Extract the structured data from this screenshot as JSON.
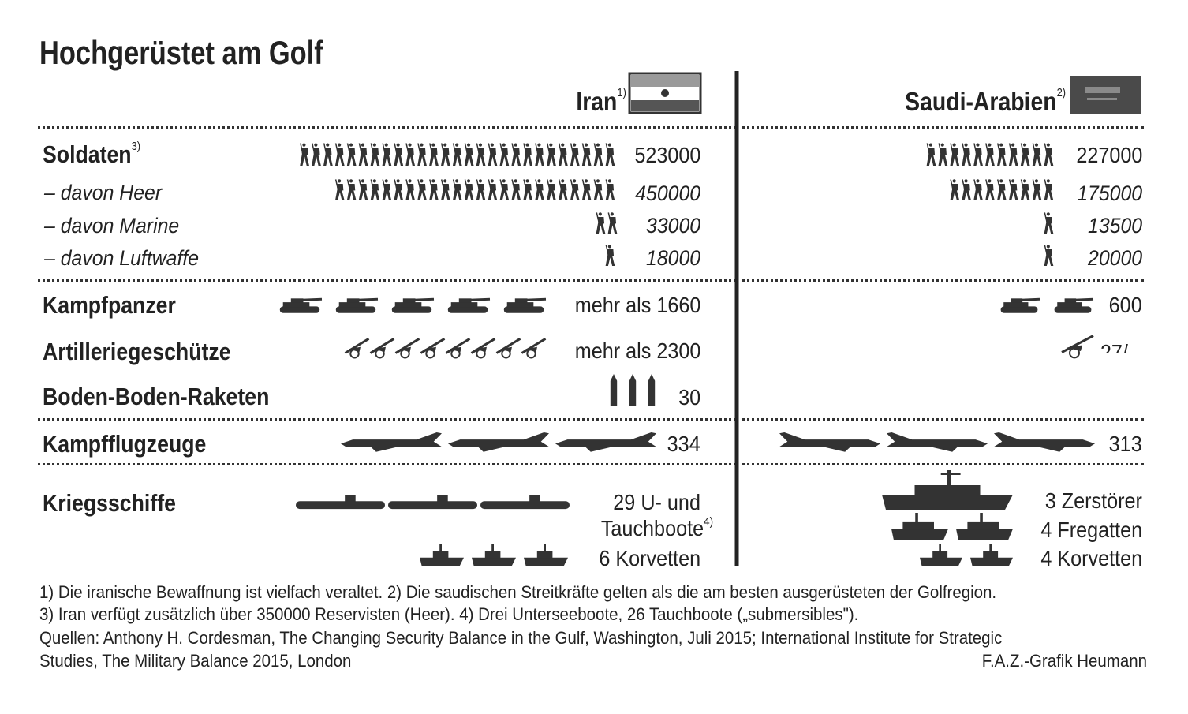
{
  "chart_data": {
    "type": "pictogram",
    "title": "Hochgerüstet am Golf",
    "countries": [
      {
        "name": "Iran",
        "note": "1)"
      },
      {
        "name": "Saudi-Arabien",
        "note": "2)"
      }
    ],
    "categories": [
      {
        "id": "soldaten",
        "label": "Soldaten",
        "note": "3)",
        "icon": "soldier-icon",
        "iran": {
          "value": 523000,
          "text": "523000",
          "icons": 27
        },
        "saudi": {
          "value": 227000,
          "text": "227000",
          "icons": 11
        }
      },
      {
        "id": "heer",
        "label": "– davon Heer",
        "icon": "soldier-icon",
        "iran": {
          "value": 450000,
          "text": "450000",
          "icons": 24
        },
        "saudi": {
          "value": 175000,
          "text": "175000",
          "icons": 9
        }
      },
      {
        "id": "marine",
        "label": "– davon Marine",
        "icon": "soldier-icon",
        "iran": {
          "value": 33000,
          "text": "33000",
          "icons": 2
        },
        "saudi": {
          "value": 13500,
          "text": "13500",
          "icons": 1
        }
      },
      {
        "id": "luftwaffe",
        "label": "– davon Luftwaffe",
        "icon": "soldier-icon",
        "iran": {
          "value": 18000,
          "text": "18000",
          "icons": 1
        },
        "saudi": {
          "value": 20000,
          "text": "20000",
          "icons": 1
        }
      },
      {
        "id": "kampfpanzer",
        "label": "Kampfpanzer",
        "icon": "tank-icon",
        "iran": {
          "value": 1660,
          "text": "mehr als 1660",
          "icons": 5
        },
        "saudi": {
          "value": 600,
          "text": "600",
          "icons": 2
        }
      },
      {
        "id": "artillerie",
        "label": "Artilleriegeschütze",
        "icon": "artillery-icon",
        "iran": {
          "value": 2300,
          "text": "mehr als 2300",
          "icons": 8
        },
        "saudi": {
          "value": null,
          "text": "27/",
          "icons": 1
        }
      },
      {
        "id": "raketen",
        "label": "Boden-Boden-Raketen",
        "icon": "missile-icon",
        "iran": {
          "value": 30,
          "text": "30",
          "icons": 3
        },
        "saudi": {
          "value": null,
          "text": "",
          "icons": 0
        }
      },
      {
        "id": "flugzeuge",
        "label": "Kampfflugzeuge",
        "icon": "fighter-jet-icon",
        "iran": {
          "value": 334,
          "text": "334",
          "icons": 3
        },
        "saudi": {
          "value": 313,
          "text": "313",
          "icons": 3
        }
      },
      {
        "id": "kriegsschiffe",
        "label": "Kriegsschiffe",
        "icon": "warship-icon"
      }
    ],
    "ships": {
      "iran": [
        {
          "value": 29,
          "text_line1": "29 U- und",
          "text_line2": "Tauchboote",
          "note": "4)",
          "icon": "submarine-icon",
          "icons": 3
        },
        {
          "value": 6,
          "text": "6 Korvetten",
          "icon": "corvette-icon",
          "icons": 3
        }
      ],
      "saudi": [
        {
          "value": 3,
          "text": "3 Zerstörer",
          "icon": "destroyer-icon",
          "icons": 1
        },
        {
          "value": 4,
          "text": "4 Fregatten",
          "icon": "frigate-icon",
          "icons": 2
        },
        {
          "value": 4,
          "text": "4 Korvetten",
          "icon": "corvette-icon",
          "icons": 2
        }
      ]
    }
  },
  "footnotes": {
    "line1": "1) Die iranische Bewaffnung ist vielfach veraltet.  2) Die saudischen Streitkräfte gelten als die am besten ausgerüsteten der Golfregion.",
    "line2": "3) Iran verfügt zusätzlich über 350000 Reservisten (Heer).  4) Drei Unterseeboote, 26 Tauchboote („submersibles\").",
    "line3": "Quellen: Anthony H. Cordesman, The Changing Security Balance in the Gulf, Washington, Juli 2015; International Institute for Strategic",
    "line4": "Studies, The Military Balance 2015, London",
    "credit": "F.A.Z.-Grafik Heumann"
  },
  "colors": {
    "ink": "#222222",
    "icon": "#333333",
    "paper": "#ffffff"
  }
}
